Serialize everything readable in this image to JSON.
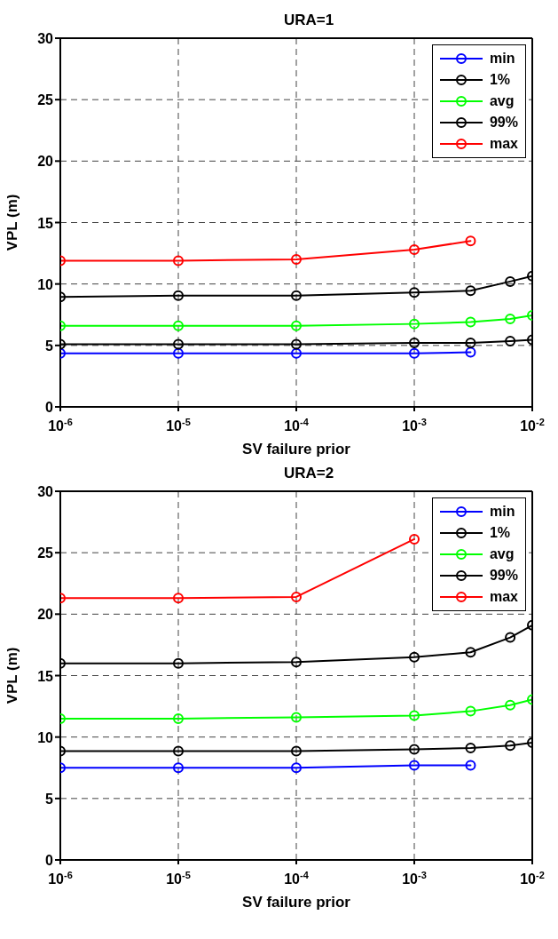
{
  "chart_data": [
    {
      "type": "line",
      "title": "URA=1",
      "xlabel": "SV failure prior",
      "ylabel": "VPL (m)",
      "log": "x",
      "grid": true,
      "legend": "top right",
      "marker": "circle",
      "line_style": "solid",
      "x": [
        1e-06,
        1e-05,
        0.0001,
        0.001,
        0.003,
        0.0065,
        0.01
      ],
      "xlim": [
        1e-06,
        0.01
      ],
      "xticks": [
        {
          "value": 1e-06,
          "label": "10$^{-6}$"
        },
        {
          "value": 1e-05,
          "label": "10$^{-5}$"
        },
        {
          "value": 0.0001,
          "label": "10$^{-4}$"
        },
        {
          "value": 0.001,
          "label": "10$^{-3}$"
        },
        {
          "value": 0.01,
          "label": "10$^{-2}$"
        }
      ],
      "ylim": [
        0,
        30
      ],
      "yticks": [
        0,
        5,
        10,
        15,
        20,
        25,
        30
      ],
      "series": [
        {
          "name": "min",
          "color": "#0000ff",
          "values": [
            4.35,
            4.35,
            4.35,
            4.35,
            4.45,
            null,
            null
          ]
        },
        {
          "name": "1%",
          "color": "#000000",
          "values": [
            5.1,
            5.1,
            5.1,
            5.2,
            5.2,
            5.35,
            5.45
          ]
        },
        {
          "name": "avg",
          "color": "#00ff00",
          "values": [
            6.6,
            6.6,
            6.6,
            6.75,
            6.9,
            7.15,
            7.45
          ]
        },
        {
          "name": "99%",
          "color": "#000000",
          "values": [
            8.95,
            9.05,
            9.05,
            9.3,
            9.45,
            10.2,
            10.65
          ]
        },
        {
          "name": "max",
          "color": "#ff0000",
          "values": [
            11.9,
            11.9,
            12.0,
            12.8,
            13.5,
            null,
            null
          ]
        }
      ]
    },
    {
      "type": "line",
      "title": "URA=2",
      "xlabel": "SV failure prior",
      "ylabel": "VPL (m)",
      "log": "x",
      "grid": true,
      "legend": "top right",
      "marker": "circle",
      "line_style": "solid",
      "x": [
        1e-06,
        1e-05,
        0.0001,
        0.001,
        0.003,
        0.0065,
        0.01
      ],
      "xlim": [
        1e-06,
        0.01
      ],
      "xticks": [
        {
          "value": 1e-06,
          "label": "10$^{-6}$"
        },
        {
          "value": 1e-05,
          "label": "10$^{-5}$"
        },
        {
          "value": 0.0001,
          "label": "10$^{-4}$"
        },
        {
          "value": 0.001,
          "label": "10$^{-3}$"
        },
        {
          "value": 0.01,
          "label": "10$^{-2}$"
        }
      ],
      "ylim": [
        0,
        30
      ],
      "yticks": [
        0,
        5,
        10,
        15,
        20,
        25,
        30
      ],
      "series": [
        {
          "name": "min",
          "color": "#0000ff",
          "values": [
            7.5,
            7.5,
            7.5,
            7.7,
            7.7,
            null,
            null
          ]
        },
        {
          "name": "1%",
          "color": "#000000",
          "values": [
            8.85,
            8.85,
            8.85,
            9.0,
            9.1,
            9.3,
            9.55
          ]
        },
        {
          "name": "avg",
          "color": "#00ff00",
          "values": [
            11.5,
            11.5,
            11.6,
            11.75,
            12.1,
            12.6,
            13.05
          ]
        },
        {
          "name": "99%",
          "color": "#000000",
          "values": [
            16.0,
            16.0,
            16.1,
            16.5,
            16.9,
            18.1,
            19.1
          ]
        },
        {
          "name": "max",
          "color": "#ff0000",
          "values": [
            21.3,
            21.3,
            21.4,
            26.1,
            null,
            null,
            null
          ]
        }
      ]
    }
  ]
}
